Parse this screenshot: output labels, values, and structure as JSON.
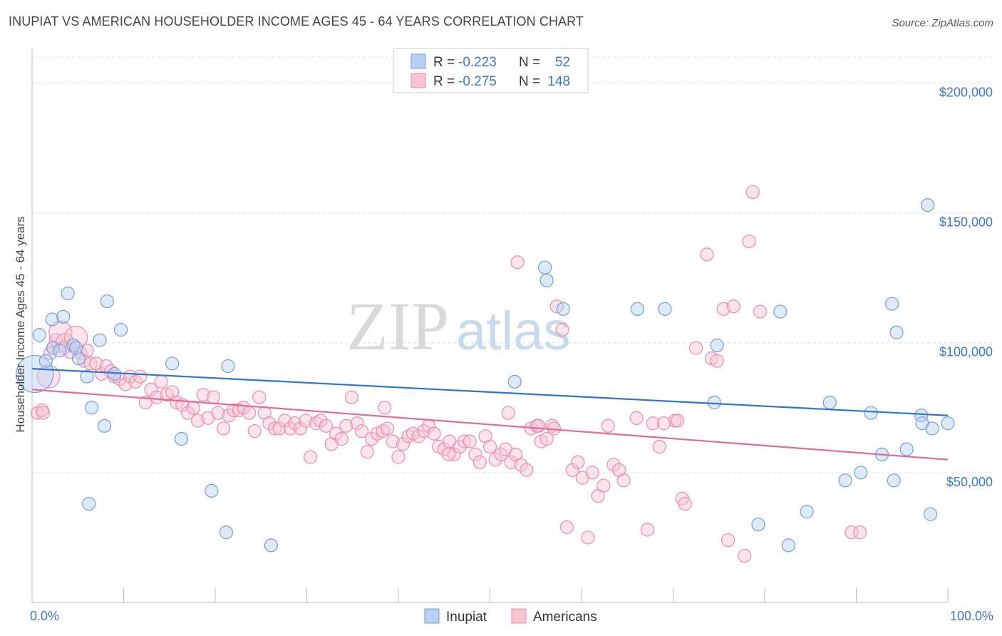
{
  "header": {
    "title": "INUPIAT VS AMERICAN HOUSEHOLDER INCOME AGES 45 - 64 YEARS CORRELATION CHART",
    "source": "Source: ZipAtlas.com"
  },
  "watermark": {
    "zip": "ZIP",
    "atlas": "atlas"
  },
  "colors": {
    "inupiat": "#6f9ee0",
    "inupiat_fill": "#b9d0f2",
    "inupiat_line": "#2f74d0",
    "americans": "#ef8aa9",
    "americans_fill": "#f7c4d3",
    "americans_line": "#e36a97",
    "tick_label": "#3b77cc"
  },
  "chart_data": {
    "type": "scatter",
    "xlabel": "",
    "ylabel": "Householder Income Ages 45 - 64 years",
    "xlim": [
      0,
      100
    ],
    "ylim": [
      0,
      210000
    ],
    "x_tick_labels": [
      "0.0%",
      "100.0%"
    ],
    "y_ticks": [
      {
        "value": 50000,
        "label": "$50,000"
      },
      {
        "value": 100000,
        "label": "$100,000"
      },
      {
        "value": 150000,
        "label": "$150,000"
      },
      {
        "value": 200000,
        "label": "$200,000"
      }
    ],
    "grid": true,
    "legend": {
      "placement": "top-center",
      "rows": [
        {
          "r_label": "R = ",
          "r_value": "-0.223",
          "n_label": "N = ",
          "n_value": "52"
        },
        {
          "r_label": "R = ",
          "r_value": "-0.275",
          "n_label": "N = ",
          "n_value": "148"
        }
      ]
    },
    "series": [
      {
        "name": "Inupiat",
        "trend": {
          "x": [
            0,
            100
          ],
          "y": [
            90000,
            72000
          ]
        },
        "points": [
          [
            0.3,
            88000,
            26
          ],
          [
            0.8,
            103000,
            9
          ],
          [
            1.5,
            93000,
            9
          ],
          [
            2.3,
            98000,
            9
          ],
          [
            2.2,
            109000,
            9
          ],
          [
            3.4,
            110000,
            9
          ],
          [
            3.9,
            119000,
            9
          ],
          [
            4.5,
            99000,
            9
          ],
          [
            5.1,
            94000,
            9
          ],
          [
            6.0,
            87000,
            9
          ],
          [
            6.5,
            75000,
            9
          ],
          [
            6.2,
            38000,
            9
          ],
          [
            7.4,
            101000,
            9
          ],
          [
            7.9,
            68000,
            9
          ],
          [
            8.2,
            116000,
            9
          ],
          [
            9.0,
            88000,
            9
          ],
          [
            9.7,
            105000,
            9
          ],
          [
            3.0,
            97000,
            9
          ],
          [
            15.3,
            92000,
            9
          ],
          [
            16.3,
            63000,
            9
          ],
          [
            19.6,
            43000,
            9
          ],
          [
            21.4,
            91000,
            9
          ],
          [
            21.2,
            27000,
            9
          ],
          [
            26.1,
            22000,
            9
          ],
          [
            52.7,
            85000,
            9
          ],
          [
            56.0,
            129000,
            9
          ],
          [
            56.2,
            124000,
            9
          ],
          [
            58.0,
            113000,
            9
          ],
          [
            66.1,
            113000,
            9
          ],
          [
            69.1,
            113000,
            9
          ],
          [
            74.8,
            99000,
            9
          ],
          [
            74.5,
            77000,
            9
          ],
          [
            79.3,
            30000,
            9
          ],
          [
            81.7,
            112000,
            9
          ],
          [
            82.6,
            22000,
            9
          ],
          [
            84.6,
            35000,
            9
          ],
          [
            87.1,
            77000,
            9
          ],
          [
            88.8,
            47000,
            9
          ],
          [
            90.5,
            50000,
            9
          ],
          [
            91.6,
            73000,
            9
          ],
          [
            92.8,
            57000,
            9
          ],
          [
            93.9,
            115000,
            9
          ],
          [
            94.4,
            104000,
            9
          ],
          [
            94.1,
            47000,
            9
          ],
          [
            95.5,
            59000,
            9
          ],
          [
            97.1,
            72000,
            9
          ],
          [
            97.2,
            69000,
            9
          ],
          [
            98.3,
            67000,
            9
          ],
          [
            97.8,
            153000,
            9
          ],
          [
            98.1,
            34000,
            9
          ],
          [
            100.0,
            69000,
            9
          ],
          [
            4.8,
            98000,
            9
          ]
        ]
      },
      {
        "name": "Americans",
        "trend": {
          "x": [
            0,
            100
          ],
          "y": [
            82000,
            55000
          ]
        },
        "points": [
          [
            0.6,
            73000,
            9
          ],
          [
            1.1,
            74000,
            9
          ],
          [
            1.8,
            87000,
            16
          ],
          [
            2.3,
            98000,
            9
          ],
          [
            2.6,
            101000,
            9
          ],
          [
            3.1,
            104000,
            16
          ],
          [
            3.6,
            100000,
            13
          ],
          [
            4.2,
            97000,
            11
          ],
          [
            4.8,
            102000,
            16
          ],
          [
            5.3,
            96000,
            9
          ],
          [
            5.7,
            93000,
            9
          ],
          [
            6.0,
            97000,
            9
          ],
          [
            6.4,
            92000,
            9
          ],
          [
            7.0,
            92000,
            9
          ],
          [
            7.6,
            88000,
            9
          ],
          [
            8.1,
            91000,
            9
          ],
          [
            8.6,
            89000,
            9
          ],
          [
            9.0,
            87000,
            9
          ],
          [
            9.6,
            86000,
            9
          ],
          [
            10.2,
            84000,
            9
          ],
          [
            10.7,
            87000,
            9
          ],
          [
            11.3,
            85000,
            9
          ],
          [
            11.8,
            87000,
            9
          ],
          [
            12.4,
            77000,
            9
          ],
          [
            13.0,
            82000,
            9
          ],
          [
            13.6,
            79000,
            9
          ],
          [
            14.1,
            85000,
            9
          ],
          [
            14.7,
            80000,
            9
          ],
          [
            15.3,
            81000,
            9
          ],
          [
            15.8,
            77000,
            9
          ],
          [
            16.4,
            76000,
            9
          ],
          [
            17.0,
            73000,
            9
          ],
          [
            17.6,
            75000,
            9
          ],
          [
            18.1,
            70000,
            9
          ],
          [
            18.7,
            80000,
            9
          ],
          [
            19.2,
            71000,
            9
          ],
          [
            19.8,
            79000,
            9
          ],
          [
            20.3,
            73000,
            9
          ],
          [
            20.9,
            67000,
            9
          ],
          [
            21.5,
            72000,
            9
          ],
          [
            22.0,
            74000,
            9
          ],
          [
            22.6,
            74000,
            9
          ],
          [
            23.1,
            75000,
            9
          ],
          [
            23.7,
            73000,
            9
          ],
          [
            24.3,
            66000,
            9
          ],
          [
            24.8,
            79000,
            9
          ],
          [
            25.4,
            73000,
            9
          ],
          [
            25.9,
            69000,
            9
          ],
          [
            26.5,
            67000,
            9
          ],
          [
            27.0,
            67000,
            9
          ],
          [
            27.6,
            70000,
            9
          ],
          [
            28.2,
            67000,
            9
          ],
          [
            28.7,
            69000,
            9
          ],
          [
            29.3,
            67000,
            9
          ],
          [
            29.9,
            70000,
            9
          ],
          [
            30.4,
            56000,
            9
          ],
          [
            31.0,
            69000,
            9
          ],
          [
            31.5,
            70000,
            9
          ],
          [
            32.1,
            68000,
            9
          ],
          [
            32.7,
            61000,
            9
          ],
          [
            33.2,
            65000,
            9
          ],
          [
            33.8,
            63000,
            9
          ],
          [
            34.3,
            68000,
            9
          ],
          [
            34.9,
            79000,
            9
          ],
          [
            35.5,
            69000,
            9
          ],
          [
            36.0,
            66000,
            9
          ],
          [
            36.6,
            58000,
            9
          ],
          [
            37.1,
            63000,
            9
          ],
          [
            37.7,
            65000,
            9
          ],
          [
            38.3,
            66000,
            9
          ],
          [
            38.8,
            67000,
            9
          ],
          [
            39.4,
            62000,
            9
          ],
          [
            40.0,
            56000,
            9
          ],
          [
            40.5,
            61000,
            9
          ],
          [
            41.1,
            64000,
            9
          ],
          [
            41.6,
            65000,
            9
          ],
          [
            42.2,
            64000,
            9
          ],
          [
            42.8,
            66000,
            9
          ],
          [
            43.3,
            68000,
            9
          ],
          [
            43.9,
            65000,
            9
          ],
          [
            44.4,
            60000,
            9
          ],
          [
            45.0,
            59000,
            9
          ],
          [
            45.6,
            62000,
            9
          ],
          [
            46.1,
            57000,
            9
          ],
          [
            46.7,
            60000,
            9
          ],
          [
            47.2,
            62000,
            9
          ],
          [
            47.8,
            62000,
            9
          ],
          [
            48.4,
            57000,
            9
          ],
          [
            48.9,
            54000,
            9
          ],
          [
            49.5,
            64000,
            9
          ],
          [
            50.0,
            60000,
            9
          ],
          [
            50.6,
            55000,
            9
          ],
          [
            51.2,
            57000,
            9
          ],
          [
            51.7,
            59000,
            9
          ],
          [
            52.3,
            54000,
            9
          ],
          [
            52.8,
            57000,
            9
          ],
          [
            53.4,
            53000,
            9
          ],
          [
            54.0,
            51000,
            9
          ],
          [
            54.5,
            67000,
            9
          ],
          [
            55.1,
            68000,
            9
          ],
          [
            55.6,
            62000,
            9
          ],
          [
            56.2,
            63000,
            9
          ],
          [
            56.8,
            68000,
            9
          ],
          [
            57.3,
            114000,
            9
          ],
          [
            57.9,
            105000,
            9
          ],
          [
            58.4,
            29000,
            9
          ],
          [
            59.0,
            51000,
            9
          ],
          [
            59.6,
            54000,
            9
          ],
          [
            60.1,
            48000,
            9
          ],
          [
            60.7,
            25000,
            9
          ],
          [
            61.2,
            50000,
            9
          ],
          [
            61.8,
            41000,
            9
          ],
          [
            62.4,
            45000,
            9
          ],
          [
            62.9,
            68000,
            9
          ],
          [
            63.5,
            53000,
            9
          ],
          [
            64.1,
            51000,
            9
          ],
          [
            64.6,
            47000,
            9
          ],
          [
            38.5,
            75000,
            9
          ],
          [
            45.5,
            57000,
            9
          ],
          [
            52.0,
            73000,
            9
          ],
          [
            70.2,
            70000,
            9
          ],
          [
            67.8,
            69000,
            9
          ],
          [
            68.5,
            60000,
            9
          ],
          [
            71.0,
            40000,
            9
          ],
          [
            71.3,
            38000,
            9
          ],
          [
            72.5,
            98000,
            9
          ],
          [
            73.7,
            134000,
            9
          ],
          [
            74.2,
            94000,
            9
          ],
          [
            74.8,
            93000,
            9
          ],
          [
            75.5,
            113000,
            9
          ],
          [
            76.0,
            24000,
            9
          ],
          [
            76.6,
            114000,
            9
          ],
          [
            77.8,
            18000,
            9
          ],
          [
            78.3,
            139000,
            9
          ],
          [
            78.7,
            158000,
            9
          ],
          [
            79.5,
            112000,
            9
          ],
          [
            66.0,
            71000,
            9
          ],
          [
            67.2,
            28000,
            9
          ],
          [
            69.0,
            69000,
            9
          ],
          [
            70.5,
            70000,
            9
          ],
          [
            89.5,
            27000,
            9
          ],
          [
            90.4,
            27000,
            9
          ],
          [
            53.0,
            131000,
            9
          ],
          [
            55.3,
            68000,
            9
          ],
          [
            57.0,
            67000,
            9
          ],
          [
            1.2,
            73000,
            9
          ],
          [
            2.0,
            96000,
            9
          ],
          [
            3.5,
            98000,
            9
          ]
        ]
      }
    ]
  },
  "bottom_legend": [
    {
      "name": "Inupiat"
    },
    {
      "name": "Americans"
    }
  ]
}
